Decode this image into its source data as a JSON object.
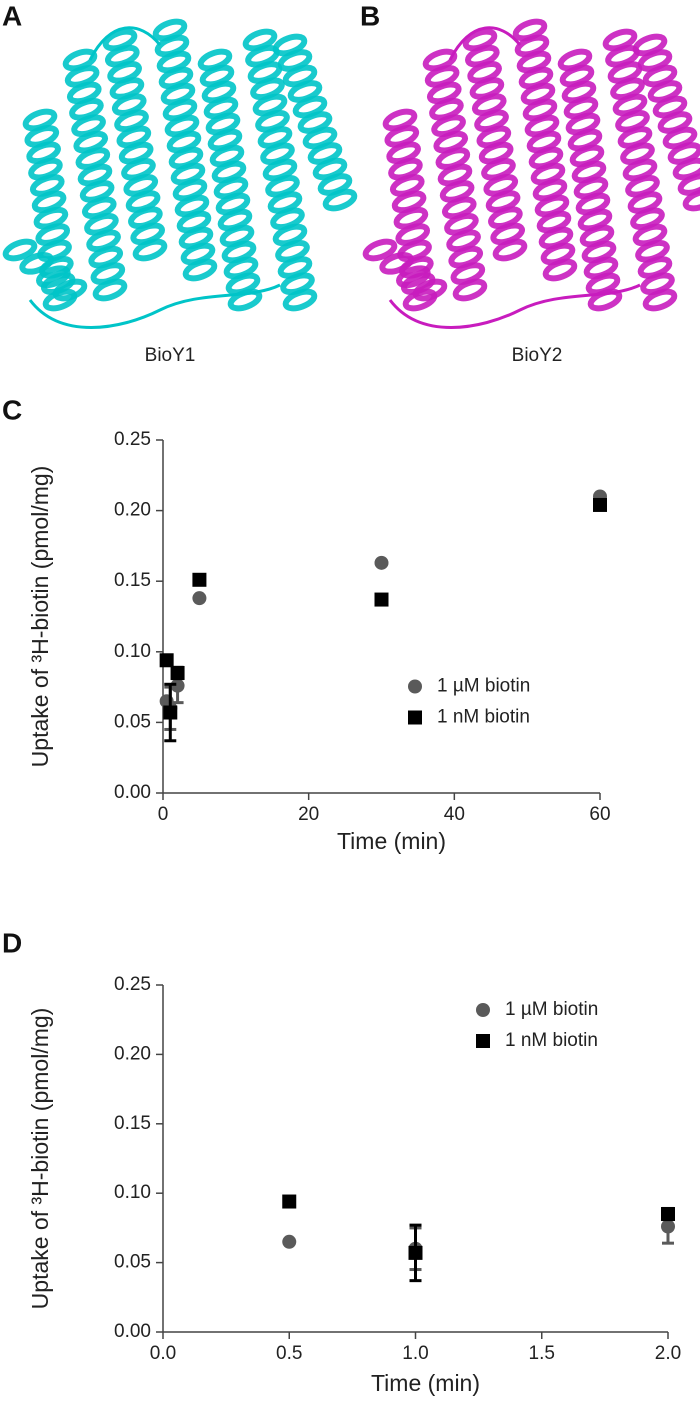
{
  "panels": [
    {
      "label": "A",
      "caption": "BioY1",
      "color": "#00c4c8"
    },
    {
      "label": "B",
      "caption": "BioY2",
      "color": "#c81cbe"
    }
  ],
  "chart_data": [
    {
      "type": "scatter",
      "label": "C",
      "xlabel": "Time (min)",
      "ylabel": "Uptake of ³H-biotin (pmol/mg)",
      "xlim": [
        0,
        60
      ],
      "xticks": [
        0,
        20,
        40,
        60
      ],
      "ylim": [
        0,
        0.25
      ],
      "yticks": [
        {
          "value": 0,
          "label": "0.00"
        },
        {
          "value": 0.05,
          "label": "0.05"
        },
        {
          "value": 0.1,
          "label": "0.10"
        },
        {
          "value": 0.15,
          "label": "0.15"
        },
        {
          "value": 0.2,
          "label": "0.20"
        },
        {
          "value": 0.25,
          "label": "0.25"
        }
      ],
      "legend": "center right",
      "series": [
        {
          "name": "1 µM biotin",
          "marker": "circle",
          "color": "#5a5a5a",
          "x": [
            0.5,
            1,
            2,
            5,
            30,
            60
          ],
          "values": [
            0.065,
            0.06,
            0.076,
            0.138,
            0.163,
            0.21
          ],
          "errors": [
            null,
            0.015,
            0.012,
            null,
            null,
            null
          ]
        },
        {
          "name": "1 nM biotin",
          "marker": "square",
          "color": "#000000",
          "x": [
            0.5,
            1,
            2,
            5,
            30,
            60
          ],
          "values": [
            0.094,
            0.057,
            0.085,
            0.151,
            0.137,
            0.204
          ],
          "errors": [
            null,
            0.02,
            0.004,
            null,
            null,
            null
          ]
        }
      ]
    },
    {
      "type": "scatter",
      "label": "D",
      "xlabel": "Time (min)",
      "ylabel": "Uptake of ³H-biotin (pmol/mg)",
      "xlim": [
        0,
        2
      ],
      "xticks": [
        {
          "value": 0,
          "label": "0.0"
        },
        {
          "value": 0.5,
          "label": "0.5"
        },
        {
          "value": 1,
          "label": "1.0"
        },
        {
          "value": 1.5,
          "label": "1.5"
        },
        {
          "value": 2,
          "label": "2.0"
        }
      ],
      "ylim": [
        0,
        0.25
      ],
      "yticks": [
        {
          "value": 0,
          "label": "0.00"
        },
        {
          "value": 0.05,
          "label": "0.05"
        },
        {
          "value": 0.1,
          "label": "0.10"
        },
        {
          "value": 0.15,
          "label": "0.15"
        },
        {
          "value": 0.2,
          "label": "0.20"
        },
        {
          "value": 0.25,
          "label": "0.25"
        }
      ],
      "legend": "upper right",
      "series": [
        {
          "name": "1 µM biotin",
          "marker": "circle",
          "color": "#5a5a5a",
          "x": [
            0.5,
            1,
            2
          ],
          "values": [
            0.065,
            0.06,
            0.076
          ],
          "errors": [
            null,
            0.015,
            0.012
          ]
        },
        {
          "name": "1 nM biotin",
          "marker": "square",
          "color": "#000000",
          "x": [
            0.5,
            1,
            2
          ],
          "values": [
            0.094,
            0.057,
            0.085
          ],
          "errors": [
            null,
            0.02,
            0.004
          ]
        }
      ]
    }
  ]
}
